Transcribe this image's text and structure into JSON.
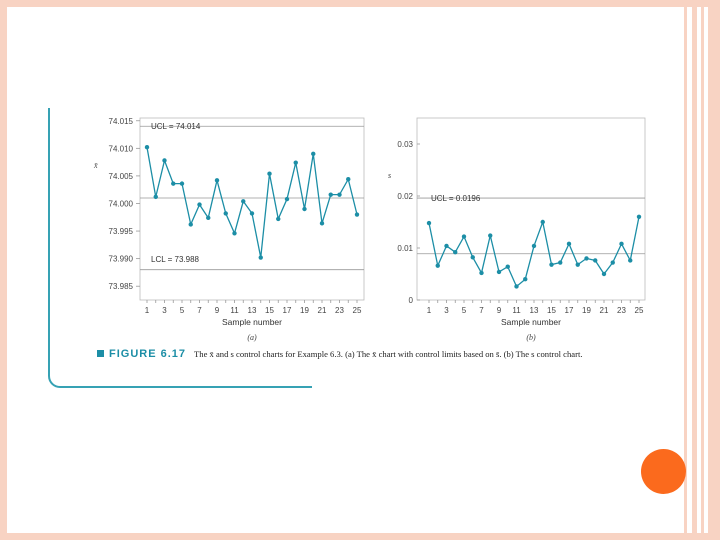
{
  "colors": {
    "frame": "#f8d3c3",
    "accent": "#36a2b4",
    "series": "#1c8ea6",
    "dot": "#fb6a1d"
  },
  "caption": {
    "figure_label": "FIGURE 6.17",
    "text": "The x̄ and s control charts for Example 6.3. (a) The x̄ chart with control limits based on s̄. (b) The s control chart."
  },
  "chart_data": [
    {
      "type": "line",
      "panel_label": "(a)",
      "xlabel": "Sample number",
      "ylabel": "x̄",
      "x": [
        1,
        2,
        3,
        4,
        5,
        6,
        7,
        8,
        9,
        10,
        11,
        12,
        13,
        14,
        15,
        16,
        17,
        18,
        19,
        20,
        21,
        22,
        23,
        24,
        25
      ],
      "series": [
        {
          "values": [
            74.0102,
            74.0012,
            74.0078,
            74.0036,
            74.0036,
            73.9962,
            73.9998,
            73.9974,
            74.0042,
            73.9982,
            73.9946,
            74.0004,
            73.9982,
            73.9902,
            74.0054,
            73.9972,
            74.0008,
            74.0074,
            73.999,
            74.009,
            73.9964,
            74.0016,
            74.0016,
            74.0044,
            73.998
          ]
        }
      ],
      "ylim": [
        73.9825,
        74.0155
      ],
      "yticks": [
        "74.015",
        "74.010",
        "74.005",
        "74.000",
        "73.995",
        "73.990",
        "73.985"
      ],
      "xticks": [
        "1",
        "3",
        "5",
        "7",
        "9",
        "11",
        "13",
        "15",
        "17",
        "19",
        "21",
        "23",
        "25"
      ],
      "limits": {
        "ucl": 74.014,
        "center": 74.001,
        "lcl": 73.988
      },
      "ucl_label": "UCL = 74.014",
      "lcl_label": "LCL = 73.988"
    },
    {
      "type": "line",
      "panel_label": "(b)",
      "xlabel": "Sample number",
      "ylabel": "s",
      "x": [
        1,
        2,
        3,
        4,
        5,
        6,
        7,
        8,
        9,
        10,
        11,
        12,
        13,
        14,
        15,
        16,
        17,
        18,
        19,
        20,
        21,
        22,
        23,
        24,
        25
      ],
      "series": [
        {
          "values": [
            0.0148,
            0.0066,
            0.0104,
            0.0092,
            0.0122,
            0.0082,
            0.0052,
            0.0124,
            0.0054,
            0.0064,
            0.0026,
            0.004,
            0.0104,
            0.015,
            0.0068,
            0.0072,
            0.0108,
            0.0068,
            0.008,
            0.0076,
            0.005,
            0.0072,
            0.0108,
            0.0076,
            0.016
          ]
        }
      ],
      "ylim": [
        0,
        0.035
      ],
      "yticks": [
        "0.03",
        "0.02",
        "0.01",
        "0"
      ],
      "ytick_values": [
        0.03,
        0.02,
        0.01,
        0
      ],
      "xticks": [
        "1",
        "3",
        "5",
        "7",
        "9",
        "11",
        "13",
        "15",
        "17",
        "19",
        "21",
        "23",
        "25"
      ],
      "limits": {
        "ucl": 0.0196,
        "center": 0.0089
      },
      "ucl_label": "UCL = 0.0196"
    }
  ]
}
